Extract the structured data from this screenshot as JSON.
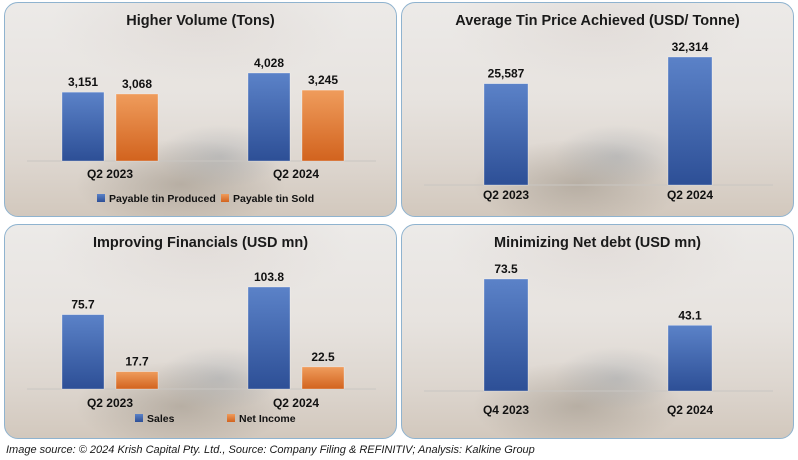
{
  "source_note": "Image source: © 2024 Krish Capital Pty. Ltd., Source: Company Filing & REFINITIV; Analysis: Kalkine Group",
  "colors": {
    "blue_top": "#5b82c8",
    "blue_bottom": "#2d4f96",
    "orange_top": "#ef9c5c",
    "orange_bottom": "#d2631e"
  },
  "chart_data": [
    {
      "type": "bar",
      "title": "Higher Volume (Tons)",
      "categories": [
        "Q2 2023",
        "Q2 2024"
      ],
      "series": [
        {
          "name": "Payable tin Produced",
          "color": "blue",
          "values": [
            3151,
            4028
          ],
          "labels": [
            "3,151",
            "4,028"
          ]
        },
        {
          "name": "Payable tin Sold",
          "color": "orange",
          "values": [
            3068,
            3245
          ],
          "labels": [
            "3,068",
            "3,245"
          ]
        }
      ],
      "ylim": [
        0,
        4028
      ],
      "legend": "bottom"
    },
    {
      "type": "bar",
      "title": "Average Tin Price Achieved (USD/ Tonne)",
      "categories": [
        "Q2 2023",
        "Q2 2024"
      ],
      "series": [
        {
          "color": "blue",
          "values": [
            25587,
            32314
          ],
          "labels": [
            "25,587",
            "32,314"
          ]
        }
      ],
      "ylim": [
        0,
        32314
      ],
      "legend": "none"
    },
    {
      "type": "bar",
      "title": "Improving Financials (USD mn)",
      "categories": [
        "Q2 2023",
        "Q2 2024"
      ],
      "series": [
        {
          "name": "Sales",
          "color": "blue",
          "values": [
            75.7,
            103.8
          ],
          "labels": [
            "75.7",
            "103.8"
          ]
        },
        {
          "name": "Net Income",
          "color": "orange",
          "values": [
            17.7,
            22.5
          ],
          "labels": [
            "17.7",
            "22.5"
          ]
        }
      ],
      "ylim": [
        0,
        103.8
      ],
      "legend": "bottom"
    },
    {
      "type": "bar",
      "title": "Minimizing Net debt (USD mn)",
      "categories": [
        "Q4 2023",
        "Q2 2024"
      ],
      "series": [
        {
          "color": "blue",
          "values": [
            73.5,
            43.1
          ],
          "labels": [
            "73.5",
            "43.1"
          ]
        }
      ],
      "ylim": [
        0,
        73.5
      ],
      "legend": "none"
    }
  ]
}
